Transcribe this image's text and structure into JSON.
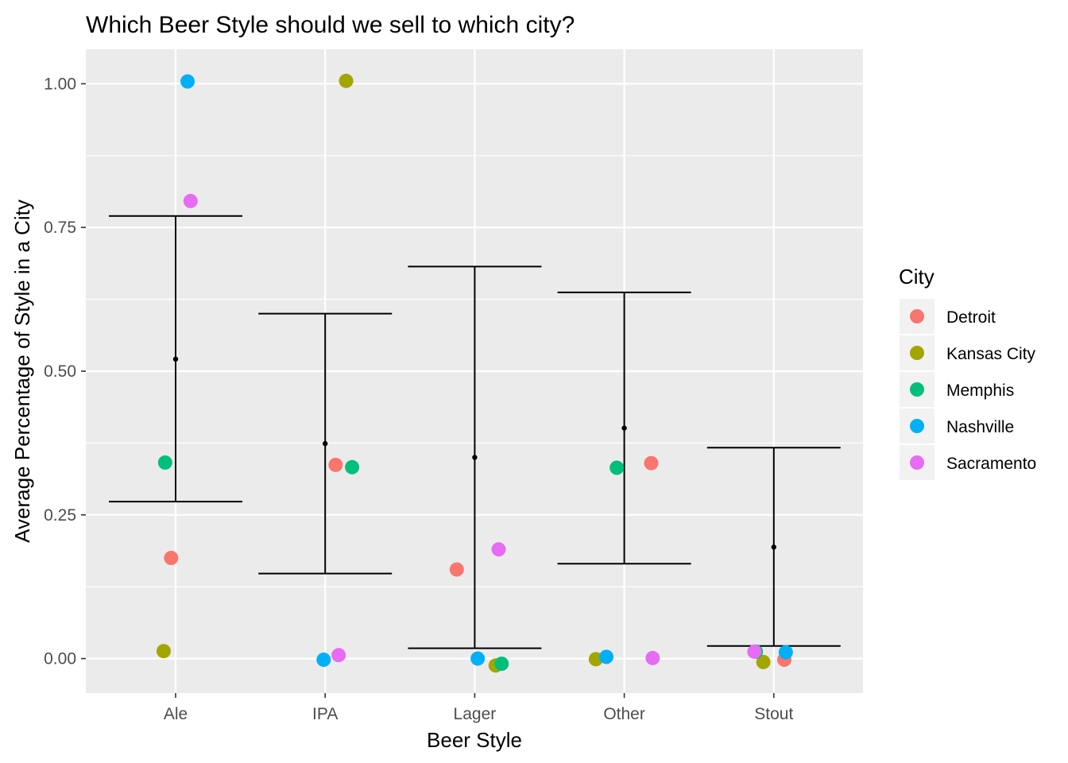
{
  "chart_data": {
    "type": "scatter",
    "title": "Which Beer Style should we sell to which city?",
    "xlabel": "Beer Style",
    "ylabel": "Average Percentage of Style in a City",
    "categories": [
      "Ale",
      "IPA",
      "Lager",
      "Other",
      "Stout"
    ],
    "ylim": [
      -0.06,
      1.06
    ],
    "yticks": [
      0.0,
      0.25,
      0.5,
      0.75,
      1.0
    ],
    "ytick_labels": [
      "0.00",
      "0.25",
      "0.50",
      "0.75",
      "1.00"
    ],
    "grid": true,
    "legend": {
      "title": "City",
      "placement": "right",
      "entries": [
        {
          "name": "Detroit",
          "color": "#F8766D"
        },
        {
          "name": "Kansas City",
          "color": "#A3A500"
        },
        {
          "name": "Memphis",
          "color": "#00BF7D"
        },
        {
          "name": "Nashville",
          "color": "#00B0F6"
        },
        {
          "name": "Sacramento",
          "color": "#E76BF3"
        }
      ]
    },
    "series": [
      {
        "name": "Detroit",
        "points": [
          {
            "category": "Ale",
            "offset": -0.03,
            "y": 0.175
          },
          {
            "category": "IPA",
            "offset": 0.07,
            "y": 0.337
          },
          {
            "category": "Lager",
            "offset": -0.12,
            "y": 0.155
          },
          {
            "category": "Other",
            "offset": 0.18,
            "y": 0.34
          },
          {
            "category": "Stout",
            "offset": 0.07,
            "y": -0.002
          }
        ]
      },
      {
        "name": "Kansas City",
        "points": [
          {
            "category": "Ale",
            "offset": -0.08,
            "y": 0.013
          },
          {
            "category": "IPA",
            "offset": 0.14,
            "y": 1.005
          },
          {
            "category": "Lager",
            "offset": 0.14,
            "y": -0.012
          },
          {
            "category": "Other",
            "offset": -0.19,
            "y": -0.001
          },
          {
            "category": "Stout",
            "offset": -0.07,
            "y": -0.006
          }
        ]
      },
      {
        "name": "Memphis",
        "points": [
          {
            "category": "Ale",
            "offset": -0.07,
            "y": 0.341
          },
          {
            "category": "IPA",
            "offset": 0.18,
            "y": 0.333
          },
          {
            "category": "Lager",
            "offset": 0.18,
            "y": -0.009
          },
          {
            "category": "Other",
            "offset": -0.05,
            "y": 0.332
          },
          {
            "category": "Stout",
            "offset": -0.12,
            "y": 0.012
          }
        ]
      },
      {
        "name": "Nashville",
        "points": [
          {
            "category": "Ale",
            "offset": 0.08,
            "y": 1.004
          },
          {
            "category": "IPA",
            "offset": -0.01,
            "y": -0.002
          },
          {
            "category": "Lager",
            "offset": 0.02,
            "y": 0.0
          },
          {
            "category": "Other",
            "offset": -0.12,
            "y": 0.003
          },
          {
            "category": "Stout",
            "offset": 0.08,
            "y": 0.011
          }
        ]
      },
      {
        "name": "Sacramento",
        "points": [
          {
            "category": "Ale",
            "offset": 0.1,
            "y": 0.796
          },
          {
            "category": "IPA",
            "offset": 0.09,
            "y": 0.006
          },
          {
            "category": "Lager",
            "offset": 0.16,
            "y": 0.19
          },
          {
            "category": "Other",
            "offset": 0.19,
            "y": 0.001
          },
          {
            "category": "Stout",
            "offset": -0.13,
            "y": 0.012
          }
        ]
      }
    ],
    "summary": [
      {
        "category": "Ale",
        "mean": 0.521,
        "lower": 0.273,
        "upper": 0.77
      },
      {
        "category": "IPA",
        "mean": 0.374,
        "lower": 0.148,
        "upper": 0.6
      },
      {
        "category": "Lager",
        "mean": 0.35,
        "lower": 0.018,
        "upper": 0.682
      },
      {
        "category": "Other",
        "mean": 0.401,
        "lower": 0.165,
        "upper": 0.637
      },
      {
        "category": "Stout",
        "mean": 0.194,
        "lower": 0.022,
        "upper": 0.367
      }
    ]
  }
}
